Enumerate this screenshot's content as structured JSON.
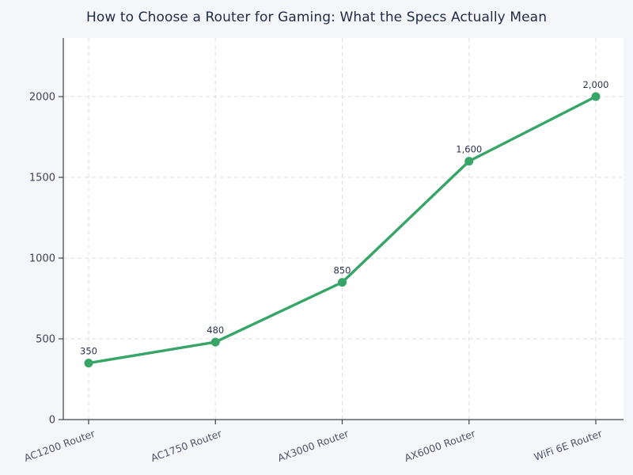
{
  "title": "How to Choose a Router for Gaming: What the Specs Actually Mean",
  "colors": {
    "background": "#f4f6fa",
    "plot_background": "#ffffff",
    "line": "#36a567",
    "grid": "#dedede",
    "spine": "#444444",
    "title_text": "#222c49",
    "y_tick_text": "#3e4458",
    "x_tick_text": "#4e5568",
    "label_text": "#2a3150"
  },
  "chart_data": {
    "type": "line",
    "title": "How to Choose a Router for Gaming: What the Specs Actually Mean",
    "categories": [
      "AC1200 Router",
      "AC1750 Router",
      "AX3000 Router",
      "AX6000 Router",
      "WiFi 6E Router"
    ],
    "values": [
      350,
      480,
      850,
      1600,
      2000
    ],
    "point_labels": [
      "350",
      "480",
      "850",
      "1,600",
      "2,000"
    ],
    "xlabel": "",
    "ylabel": "",
    "ylim": [
      0,
      2363
    ],
    "yticks": [
      0,
      500,
      1000,
      1500,
      2000
    ],
    "grid": true,
    "grid_style": "dashed",
    "legend": false,
    "marker": "circle",
    "x_tick_rotation_deg": 20
  }
}
